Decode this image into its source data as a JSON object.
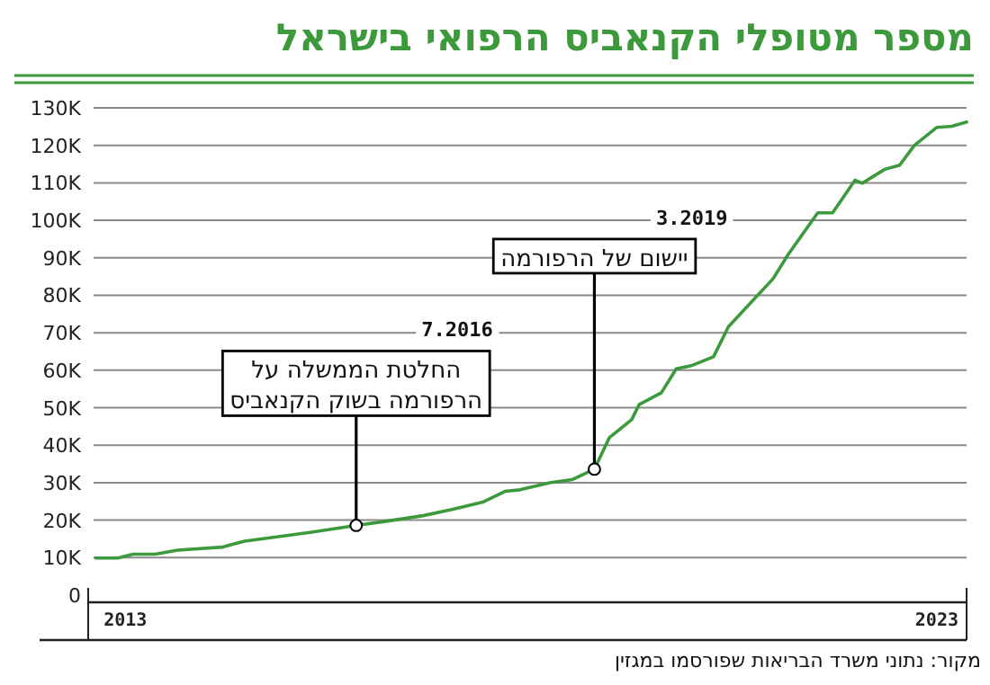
{
  "chart_data": {
    "type": "line",
    "title": "מספר מטופלי הקנאביס הרפואי בישראל",
    "x": [
      "2013-08",
      "2013-11",
      "2014-01",
      "2014-04",
      "2014-07",
      "2015-01",
      "2015-04",
      "2015-09",
      "2016-01",
      "2016-07",
      "2016-11",
      "2017-04",
      "2017-08",
      "2017-12",
      "2018-03",
      "2018-05",
      "2018-09",
      "2018-12",
      "2019-03",
      "2019-05",
      "2019-08",
      "2019-09",
      "2019-12",
      "2020-02",
      "2020-04",
      "2020-07",
      "2020-09",
      "2020-12",
      "2021-03",
      "2021-05",
      "2021-09",
      "2021-11",
      "2022-02",
      "2022-03",
      "2022-06",
      "2022-08",
      "2022-10",
      "2023-01",
      "2023-03",
      "2023-05"
    ],
    "series": [
      {
        "color": "#3c9a3c",
        "values": [
          9900,
          9900,
          10900,
          10900,
          12000,
          12800,
          14400,
          15700,
          16800,
          18600,
          19700,
          21200,
          22900,
          24800,
          27700,
          28100,
          30000,
          30800,
          33600,
          42000,
          46800,
          50800,
          54000,
          60400,
          61200,
          63600,
          71600,
          78000,
          84400,
          90800,
          102000,
          102000,
          110700,
          109900,
          113600,
          114700,
          120000,
          124800,
          125100,
          126200
        ]
      }
    ],
    "xlim": [
      "2013-07",
      "2023-05"
    ],
    "xticks": [
      {
        "value": "2013-12",
        "label": "2013"
      },
      {
        "value": "2023-01",
        "label": "2023"
      }
    ],
    "ylim": [
      0,
      130000
    ],
    "yticks": [
      {
        "value": 0,
        "label": "0"
      },
      {
        "value": 10000,
        "label": "10K"
      },
      {
        "value": 20000,
        "label": "20K"
      },
      {
        "value": 30000,
        "label": "30K"
      },
      {
        "value": 40000,
        "label": "40K"
      },
      {
        "value": 50000,
        "label": "50K"
      },
      {
        "value": 60000,
        "label": "60K"
      },
      {
        "value": 70000,
        "label": "70K"
      },
      {
        "value": 80000,
        "label": "80K"
      },
      {
        "value": 90000,
        "label": "90K"
      },
      {
        "value": 100000,
        "label": "100K"
      },
      {
        "value": 110000,
        "label": "110K"
      },
      {
        "value": 120000,
        "label": "120K"
      },
      {
        "value": 130000,
        "label": "130K"
      }
    ],
    "grid": "y",
    "marker": "none",
    "line_style": "solid",
    "annotations": [
      "7.2016",
      {
        "text": "החלטת הממשלה על\nהרפורמה בשוק הקנאביס",
        "x": "2016-07",
        "y": 18600
      },
      "3.2019",
      {
        "text": "יישום של הרפורמה",
        "x": "2019-03",
        "y": 33600
      },
      "מקור: נתוני משרד הבריאות שפורסמו במגזין"
    ]
  }
}
